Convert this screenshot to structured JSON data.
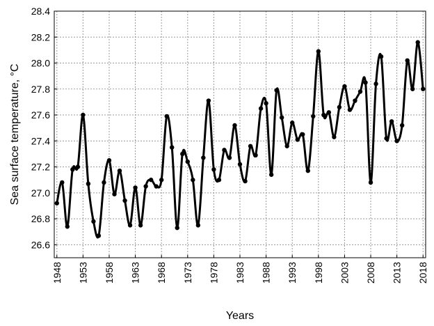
{
  "chart_data": {
    "type": "line",
    "title": "",
    "xlabel": "Years",
    "ylabel": "Sea surface temperature, °C",
    "xlim": [
      1947.5,
      2018.5
    ],
    "ylim": [
      26.5,
      28.4
    ],
    "grid": true,
    "x_ticks": [
      1948,
      1953,
      1958,
      1963,
      1968,
      1973,
      1978,
      1983,
      1988,
      1993,
      1998,
      2003,
      2008,
      2013,
      2018
    ],
    "y_ticks": [
      26.6,
      26.8,
      27.0,
      27.2,
      27.4,
      27.6,
      27.8,
      28.0,
      28.2,
      28.4
    ],
    "y_tick_labels": [
      "26.6",
      "26.8",
      "27.0",
      "27.2",
      "27.4",
      "27.6",
      "27.8",
      "28.0",
      "28.2",
      "28.4"
    ],
    "series": [
      {
        "color": "#000000",
        "x": [
          1948,
          1949,
          1950,
          1951,
          1952,
          1953,
          1954,
          1955,
          1956,
          1957,
          1958,
          1959,
          1960,
          1961,
          1962,
          1963,
          1964,
          1965,
          1966,
          1967,
          1968,
          1969,
          1970,
          1971,
          1972,
          1973,
          1974,
          1975,
          1976,
          1977,
          1978,
          1979,
          1980,
          1981,
          1982,
          1983,
          1984,
          1985,
          1986,
          1987,
          1988,
          1989,
          1990,
          1991,
          1992,
          1993,
          1994,
          1995,
          1996,
          1997,
          1998,
          1999,
          2000,
          2001,
          2002,
          2003,
          2004,
          2005,
          2006,
          2007,
          2008,
          2009,
          2010,
          2011,
          2012,
          2013,
          2014,
          2015,
          2016,
          2017,
          2018
        ],
        "y": [
          26.92,
          27.08,
          26.74,
          27.18,
          27.2,
          27.6,
          27.07,
          26.78,
          26.67,
          27.08,
          27.25,
          26.99,
          27.17,
          26.94,
          26.75,
          27.04,
          26.75,
          27.05,
          27.1,
          27.05,
          27.1,
          27.59,
          27.35,
          26.73,
          27.3,
          27.24,
          27.1,
          26.75,
          27.27,
          27.71,
          27.18,
          27.1,
          27.33,
          27.27,
          27.52,
          27.22,
          27.09,
          27.36,
          27.29,
          27.65,
          27.69,
          27.14,
          27.79,
          27.58,
          27.36,
          27.54,
          27.41,
          27.45,
          27.17,
          27.59,
          28.09,
          27.6,
          27.62,
          27.43,
          27.66,
          27.82,
          27.64,
          27.71,
          27.78,
          27.85,
          27.08,
          27.84,
          28.05,
          27.42,
          27.55,
          27.4,
          27.52,
          28.02,
          27.8,
          28.16,
          27.8
        ]
      }
    ]
  }
}
